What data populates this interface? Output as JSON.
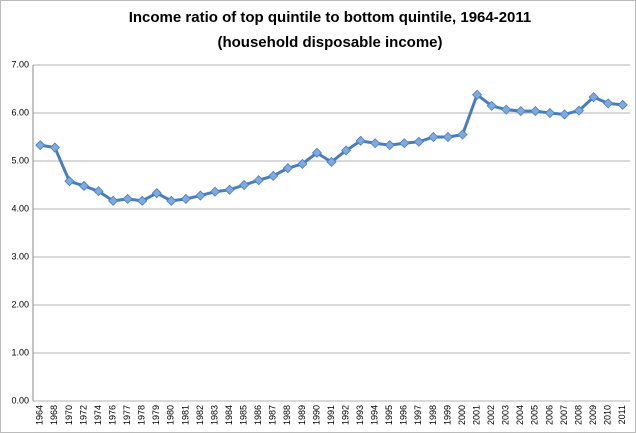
{
  "chart_data": {
    "type": "line",
    "title": "Income ratio of top quintile to bottom quintile, 1964-2011",
    "subtitle": "(household disposable income)",
    "categories": [
      "1964",
      "1968",
      "1970",
      "1972",
      "1974",
      "1976",
      "1977",
      "1978",
      "1979",
      "1980",
      "1981",
      "1982",
      "1983",
      "1984",
      "1985",
      "1986",
      "1987",
      "1988",
      "1989",
      "1990",
      "1991",
      "1992",
      "1993",
      "1994",
      "1995",
      "1996",
      "1997",
      "1998",
      "1999",
      "2000",
      "2001",
      "2002",
      "2003",
      "2004",
      "2005",
      "2006",
      "2007",
      "2008",
      "2009",
      "2010",
      "2011"
    ],
    "values": [
      5.33,
      5.28,
      4.58,
      4.48,
      4.37,
      4.17,
      4.21,
      4.17,
      4.33,
      4.17,
      4.21,
      4.28,
      4.36,
      4.4,
      4.5,
      4.6,
      4.69,
      4.85,
      4.94,
      5.17,
      4.98,
      5.22,
      5.42,
      5.37,
      5.33,
      5.37,
      5.4,
      5.5,
      5.5,
      5.55,
      6.38,
      6.15,
      6.07,
      6.04,
      6.04,
      6.0,
      5.97,
      6.05,
      6.33,
      6.2,
      6.17
    ],
    "color": "#4a7ebb",
    "marker_color": "#7faadf",
    "ylim": [
      0,
      7
    ],
    "yticks": [
      {
        "value": 0,
        "label": "0.00"
      },
      {
        "value": 1,
        "label": "1.00"
      },
      {
        "value": 2,
        "label": "2.00"
      },
      {
        "value": 3,
        "label": "3.00"
      },
      {
        "value": 4,
        "label": "4.00"
      },
      {
        "value": 5,
        "label": "5.00"
      },
      {
        "value": 6,
        "label": "6.00"
      },
      {
        "value": 7,
        "label": "7.00"
      }
    ],
    "grid": true
  }
}
